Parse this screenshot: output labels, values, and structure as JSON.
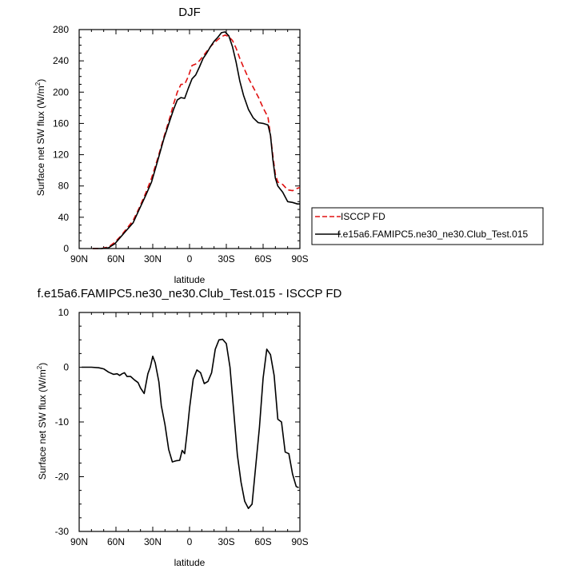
{
  "chart_data": [
    {
      "type": "line",
      "title": "DJF",
      "xlabel": "latitude",
      "ylabel": "Surface net SW flux (W/m",
      "ylabel_sup": "2",
      "ylabel_close": ")",
      "xlim": [
        -90,
        90
      ],
      "ylim": [
        0,
        280
      ],
      "x_ticks": [
        -90,
        -60,
        -30,
        0,
        30,
        60,
        90
      ],
      "x_tick_labels": [
        "90N",
        "60N",
        "30N",
        "0",
        "30S",
        "60S",
        "90S"
      ],
      "y_ticks": [
        0,
        40,
        80,
        120,
        160,
        200,
        240,
        280
      ],
      "y_tick_labels": [
        "0",
        "40",
        "80",
        "120",
        "160",
        "200",
        "240",
        "280"
      ],
      "grid": false,
      "legend": "right",
      "series": [
        {
          "name": "ISCCP FD",
          "color": "#e01010",
          "dash": "dashed",
          "x": [
            -79,
            -72,
            -66,
            -61,
            -56,
            -51,
            -46,
            -41,
            -36,
            -31,
            -26,
            -21,
            -16,
            -13,
            -10,
            -7,
            -4,
            -1,
            2,
            5,
            8,
            11,
            14,
            17,
            20,
            23,
            26,
            29,
            32,
            35,
            38,
            41,
            44,
            48,
            52,
            56,
            60,
            64,
            66,
            68,
            70,
            72,
            76,
            80,
            84,
            88,
            90
          ],
          "y": [
            0,
            0,
            2,
            8,
            16,
            26,
            36,
            52,
            70,
            90,
            115,
            142,
            168,
            185,
            200,
            210,
            210,
            220,
            234,
            236,
            240,
            246,
            252,
            258,
            263,
            267,
            271,
            273,
            271,
            266,
            256,
            243,
            232,
            218,
            206,
            194,
            180,
            168,
            145,
            118,
            95,
            85,
            82,
            75,
            74,
            77,
            78
          ]
        },
        {
          "name": "f.e15a6.FAMIPC5.ne30_ne30.Club_Test.015",
          "color": "#000000",
          "dash": "solid",
          "x": [
            -79,
            -72,
            -66,
            -61,
            -56,
            -51,
            -46,
            -41,
            -36,
            -31,
            -26,
            -21,
            -16,
            -13,
            -10,
            -7,
            -4,
            -1,
            2,
            5,
            8,
            11,
            14,
            17,
            20,
            23,
            26,
            29,
            32,
            35,
            38,
            41,
            44,
            48,
            52,
            56,
            60,
            64,
            66,
            68,
            70,
            72,
            76,
            80,
            84,
            88,
            90
          ],
          "y": [
            0,
            0,
            1,
            6,
            15,
            24,
            33,
            50,
            67,
            85,
            112,
            140,
            164,
            178,
            190,
            193,
            192,
            205,
            217,
            222,
            232,
            243,
            250,
            258,
            265,
            270,
            276,
            277,
            272,
            258,
            238,
            214,
            196,
            178,
            167,
            161,
            160,
            158,
            145,
            113,
            90,
            80,
            72,
            60,
            59,
            57,
            57
          ]
        }
      ]
    },
    {
      "type": "line",
      "title": "f.e15a6.FAMIPC5.ne30_ne30.Club_Test.015 - ISCCP FD",
      "xlabel": "latitude",
      "ylabel": "Surface net SW flux (W/m",
      "ylabel_sup": "2",
      "ylabel_close": ")",
      "xlim": [
        -90,
        90
      ],
      "ylim": [
        -30,
        10
      ],
      "x_ticks": [
        -90,
        -60,
        -30,
        0,
        30,
        60,
        90
      ],
      "x_tick_labels": [
        "90N",
        "60N",
        "30N",
        "0",
        "30S",
        "60S",
        "90S"
      ],
      "y_ticks": [
        -30,
        -20,
        -10,
        0,
        10
      ],
      "y_tick_labels": [
        "-30",
        "-20",
        "-10",
        "0",
        "10"
      ],
      "grid": false,
      "series": [
        {
          "color": "#000000",
          "dash": "solid",
          "x": [
            -88,
            -80,
            -74,
            -70,
            -66,
            -62,
            -59,
            -57,
            -55,
            -53,
            -51,
            -48,
            -45,
            -42,
            -40,
            -37,
            -34,
            -32,
            -30,
            -28,
            -25,
            -23,
            -20,
            -17,
            -14,
            -11,
            -8,
            -6,
            -4,
            -2,
            0,
            3,
            6,
            9,
            12,
            15,
            18,
            21,
            24,
            27,
            30,
            33,
            36,
            39,
            42,
            45,
            48,
            51,
            54,
            57,
            60,
            63,
            66,
            69,
            72,
            75,
            78,
            81,
            84,
            87,
            89
          ],
          "y": [
            0,
            0,
            -0.1,
            -0.3,
            -0.9,
            -1.3,
            -1.2,
            -1.5,
            -1.2,
            -1.0,
            -1.7,
            -1.7,
            -2.3,
            -2.8,
            -3.8,
            -4.8,
            -1.2,
            0,
            2.0,
            0.8,
            -2.7,
            -7.0,
            -10.5,
            -15.0,
            -17.3,
            -17.1,
            -17.0,
            -15.2,
            -15.8,
            -12.0,
            -7.5,
            -2.2,
            -0.5,
            -1.0,
            -3.0,
            -2.6,
            -1.0,
            3.3,
            5.0,
            5.1,
            4.3,
            0,
            -8.0,
            -16.0,
            -21.0,
            -24.5,
            -25.8,
            -25.0,
            -18.0,
            -11.0,
            -2.0,
            3.3,
            2.3,
            -1.5,
            -9.5,
            -10.0,
            -15.5,
            -15.8,
            -19.5,
            -21.8,
            -22.0
          ]
        }
      ]
    }
  ]
}
